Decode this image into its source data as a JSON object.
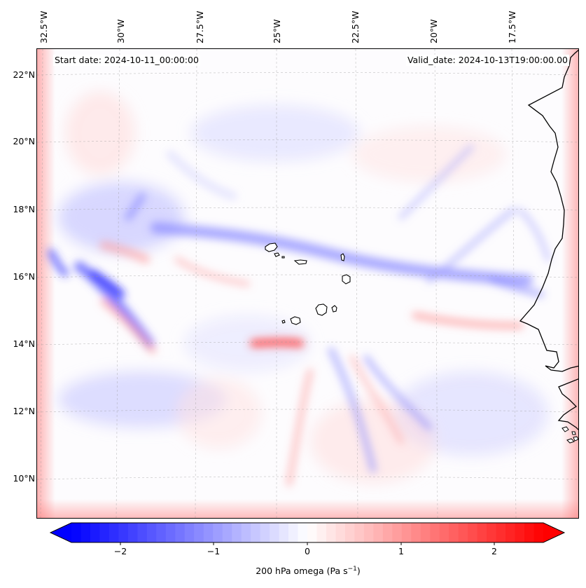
{
  "header": {
    "start_date": "Start date: 2024-10-11_00:00:00",
    "valid_date": "Valid_date: 2024-10-13T19:00:00.00"
  },
  "axes": {
    "lon_labels": [
      "32.5°W",
      "30°W",
      "27.5°W",
      "25°W",
      "22.5°W",
      "20°W",
      "17.5°W"
    ],
    "lat_labels": [
      "22°N",
      "20°N",
      "18°N",
      "16°N",
      "14°N",
      "12°N",
      "10°N"
    ],
    "gridlines": "dashed"
  },
  "colorbar": {
    "ticks": [
      "−2",
      "−1",
      "0",
      "1",
      "2"
    ],
    "range": [
      -2.6,
      2.6
    ],
    "colormap": "bwr",
    "label": "200 hPa omega (Pa s",
    "label_sup": "−1",
    "label_end": ")",
    "extend": "both"
  },
  "colors": {
    "negative": "#0000ff",
    "neutral": "#ffffff",
    "positive": "#ff0000",
    "coastline": "#000000"
  }
}
